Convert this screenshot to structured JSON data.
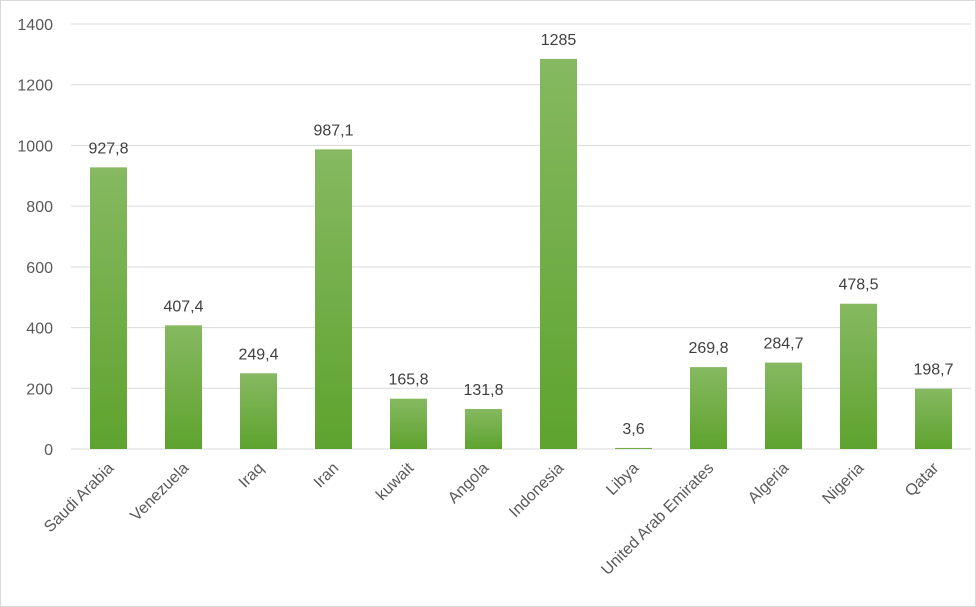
{
  "chart_data": {
    "type": "bar",
    "categories": [
      "Saudi Arabia",
      "Venezuela",
      "Iraq",
      "Iran",
      "kuwait",
      "Angola",
      "Indonesia",
      "Libya",
      "United Arab Emirates",
      "Algeria",
      "Nigeria",
      "Qatar"
    ],
    "values": [
      927.8,
      407.4,
      249.4,
      987.1,
      165.8,
      131.8,
      1285,
      3.6,
      269.8,
      284.7,
      478.5,
      198.7
    ],
    "value_labels": [
      "927,8",
      "407,4",
      "249,4",
      "987,1",
      "165,8",
      "131,8",
      "1285",
      "3,6",
      "269,8",
      "284,7",
      "478,5",
      "198,7"
    ],
    "title": "",
    "xlabel": "",
    "ylabel": "",
    "ylim": [
      0,
      1400
    ],
    "yticks": [
      "0",
      "200",
      "400",
      "600",
      "800",
      "1000",
      "1200",
      "1400"
    ],
    "grid": true,
    "legend": "none",
    "bar_color_top": "#86b961",
    "bar_color_bottom": "#5ea32e",
    "gridline_color": "#d9d9d9"
  }
}
